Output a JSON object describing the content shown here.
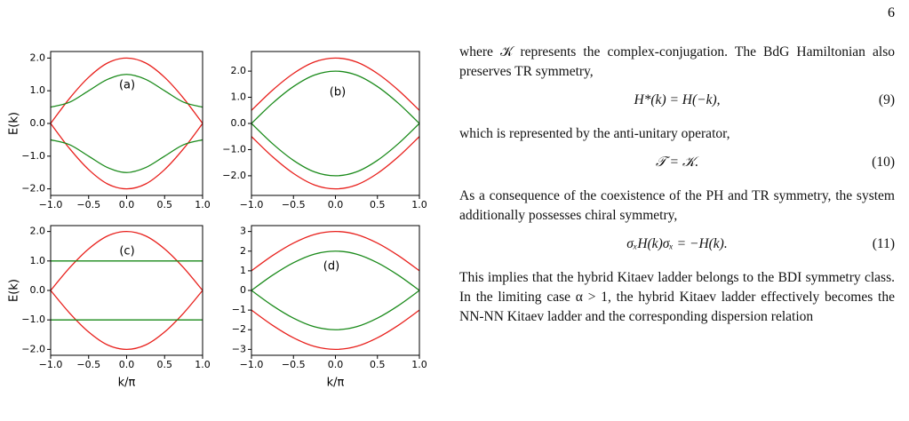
{
  "page_number": "6",
  "chart_data": [
    {
      "type": "line",
      "annotation": "(a)",
      "ylabel": "E(k)",
      "x": [
        -1,
        -0.75,
        -0.5,
        -0.25,
        0,
        0.25,
        0.5,
        0.75,
        1
      ],
      "xlim": [
        -1,
        1
      ],
      "xticks": [
        {
          "value": -1,
          "label": "−1.0"
        },
        {
          "value": -0.5,
          "label": "−0.5"
        },
        {
          "value": 0,
          "label": "0.0"
        },
        {
          "value": 0.5,
          "label": "0.5"
        },
        {
          "value": 1,
          "label": "1.0"
        }
      ],
      "ylim": [
        -2.2,
        2.2
      ],
      "yticks": [
        {
          "value": 2,
          "label": "2.0"
        },
        {
          "value": 1,
          "label": "1.0"
        },
        {
          "value": 0,
          "label": "0.0"
        },
        {
          "value": -1,
          "label": "−1.0"
        },
        {
          "value": -2,
          "label": "−2.0"
        }
      ],
      "series": [
        {
          "color": "#e8201c",
          "values": [
            0,
            0.77,
            1.41,
            1.85,
            2,
            1.85,
            1.41,
            0.77,
            0
          ]
        },
        {
          "color": "#e8201c",
          "values": [
            0,
            -0.77,
            -1.41,
            -1.85,
            -2,
            -1.85,
            -1.41,
            -0.77,
            0
          ]
        },
        {
          "color": "#1a8a1a",
          "values": [
            0.5,
            0.65,
            1,
            1.35,
            1.5,
            1.35,
            1,
            0.65,
            0.5
          ]
        },
        {
          "color": "#1a8a1a",
          "values": [
            -0.5,
            -0.65,
            -1,
            -1.35,
            -1.5,
            -1.35,
            -1,
            -0.65,
            -0.5
          ]
        }
      ]
    },
    {
      "type": "line",
      "annotation": "(b)",
      "x": [
        -1,
        -0.75,
        -0.5,
        -0.25,
        0,
        0.25,
        0.5,
        0.75,
        1
      ],
      "xlim": [
        -1,
        1
      ],
      "xticks": [
        {
          "value": -1,
          "label": "−1.0"
        },
        {
          "value": -0.5,
          "label": "−0.5"
        },
        {
          "value": 0,
          "label": "0.0"
        },
        {
          "value": 0.5,
          "label": "0.5"
        },
        {
          "value": 1,
          "label": "1.0"
        }
      ],
      "ylim": [
        -2.75,
        2.75
      ],
      "yticks": [
        {
          "value": 2,
          "label": "2.0"
        },
        {
          "value": 1,
          "label": "1.0"
        },
        {
          "value": 0,
          "label": "0.0"
        },
        {
          "value": -1,
          "label": "−1.0"
        },
        {
          "value": -2,
          "label": "−2.0"
        }
      ],
      "series": [
        {
          "color": "#e8201c",
          "values": [
            0.5,
            1.27,
            1.91,
            2.35,
            2.5,
            2.35,
            1.91,
            1.27,
            0.5
          ]
        },
        {
          "color": "#e8201c",
          "values": [
            -0.5,
            -1.27,
            -1.91,
            -2.35,
            -2.5,
            -2.35,
            -1.91,
            -1.27,
            -0.5
          ]
        },
        {
          "color": "#1a8a1a",
          "values": [
            0,
            0.77,
            1.41,
            1.85,
            2,
            1.85,
            1.41,
            0.77,
            0
          ]
        },
        {
          "color": "#1a8a1a",
          "values": [
            0,
            -0.77,
            -1.41,
            -1.85,
            -2,
            -1.85,
            -1.41,
            -0.77,
            0
          ]
        }
      ]
    },
    {
      "type": "line",
      "annotation": "(c)",
      "ylabel": "E(k)",
      "xlabel": "k/π",
      "x": [
        -1,
        -0.75,
        -0.5,
        -0.25,
        0,
        0.25,
        0.5,
        0.75,
        1
      ],
      "xlim": [
        -1,
        1
      ],
      "xticks": [
        {
          "value": -1,
          "label": "−1.0"
        },
        {
          "value": -0.5,
          "label": "−0.5"
        },
        {
          "value": 0,
          "label": "0.0"
        },
        {
          "value": 0.5,
          "label": "0.5"
        },
        {
          "value": 1,
          "label": "1.0"
        }
      ],
      "ylim": [
        -2.2,
        2.2
      ],
      "yticks": [
        {
          "value": 2,
          "label": "2.0"
        },
        {
          "value": 1,
          "label": "1.0"
        },
        {
          "value": 0,
          "label": "0.0"
        },
        {
          "value": -1,
          "label": "−1.0"
        },
        {
          "value": -2,
          "label": "−2.0"
        }
      ],
      "series": [
        {
          "color": "#e8201c",
          "values": [
            0,
            0.77,
            1.41,
            1.85,
            2,
            1.85,
            1.41,
            0.77,
            0
          ]
        },
        {
          "color": "#e8201c",
          "values": [
            0,
            -0.77,
            -1.41,
            -1.85,
            -2,
            -1.85,
            -1.41,
            -0.77,
            0
          ]
        },
        {
          "color": "#1a8a1a",
          "values": [
            1,
            1,
            1,
            1,
            1,
            1,
            1,
            1,
            1
          ]
        },
        {
          "color": "#1a8a1a",
          "values": [
            -1,
            -1,
            -1,
            -1,
            -1,
            -1,
            -1,
            -1,
            -1
          ]
        }
      ]
    },
    {
      "type": "line",
      "annotation": "(d)",
      "xlabel": "k/π",
      "x": [
        -1,
        -0.75,
        -0.5,
        -0.25,
        0,
        0.25,
        0.5,
        0.75,
        1
      ],
      "xlim": [
        -1,
        1
      ],
      "xticks": [
        {
          "value": -1,
          "label": "−1.0"
        },
        {
          "value": -0.5,
          "label": "−0.5"
        },
        {
          "value": 0,
          "label": "0.0"
        },
        {
          "value": 0.5,
          "label": "0.5"
        },
        {
          "value": 1,
          "label": "1.0"
        }
      ],
      "ylim": [
        -3.3,
        3.3
      ],
      "yticks": [
        3,
        2,
        1,
        0,
        {
          "value": -1,
          "label": "−1"
        },
        {
          "value": -2,
          "label": "−2"
        },
        {
          "value": -3,
          "label": "−3"
        }
      ],
      "series": [
        {
          "color": "#e8201c",
          "values": [
            1,
            1.77,
            2.41,
            2.85,
            3,
            2.85,
            2.41,
            1.77,
            1
          ]
        },
        {
          "color": "#e8201c",
          "values": [
            -1,
            -1.77,
            -2.41,
            -2.85,
            -3,
            -2.85,
            -2.41,
            -1.77,
            -1
          ]
        },
        {
          "color": "#1a8a1a",
          "values": [
            0,
            0.77,
            1.41,
            1.85,
            2,
            1.85,
            1.41,
            0.77,
            0
          ]
        },
        {
          "color": "#1a8a1a",
          "values": [
            0,
            -0.77,
            -1.41,
            -1.85,
            -2,
            -1.85,
            -1.41,
            -0.77,
            0
          ]
        }
      ]
    }
  ],
  "body": [
    {
      "text": "where 𝒦 represents the complex-conjugation. The BdG Hamiltonian also preserves TR symmetry,"
    },
    {
      "equation": "H*(k) = H(−k),",
      "number": "(9)"
    },
    {
      "text": "which is represented by the anti-unitary operator,"
    },
    {
      "equation": "𝒯 = 𝒦.",
      "number": "(10)"
    },
    {
      "text": "As a consequence of the coexistence of the PH and TR symmetry, the system additionally possesses chiral symmetry,"
    },
    {
      "equation": "σₓH(k)σₓ = −H(k).",
      "number": "(11)"
    },
    {
      "text": "This implies that the hybrid Kitaev ladder belongs to the BDI symmetry class. In the limiting case α > 1, the hybrid Kitaev ladder effectively becomes the NN-NN Kitaev ladder and the corresponding dispersion relation"
    }
  ]
}
